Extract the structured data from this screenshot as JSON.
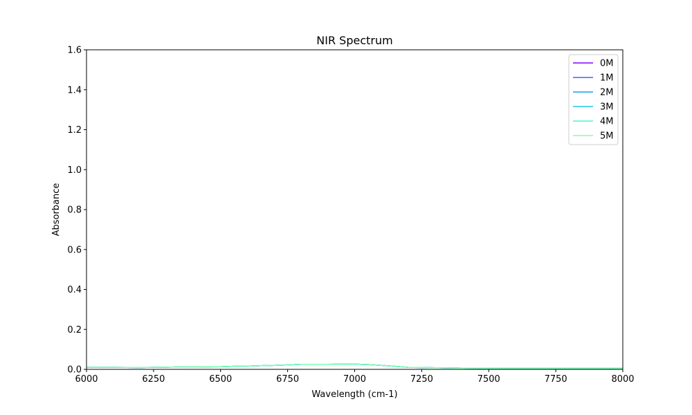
{
  "chart_data": {
    "type": "line",
    "title": "NIR Spectrum",
    "xlabel": "Wavelength (cm-1)",
    "ylabel": "Absorbance",
    "xlim": [
      6000,
      8000
    ],
    "ylim": [
      0,
      1.6
    ],
    "xticks": [
      "6000",
      "6250",
      "6500",
      "6750",
      "7000",
      "7250",
      "7500",
      "7750",
      "8000"
    ],
    "yticks": [
      "0.0",
      "0.2",
      "0.4",
      "0.6",
      "0.8",
      "1.0",
      "1.2",
      "1.4",
      "1.6"
    ],
    "grid": false,
    "legend_position": "top-right",
    "x": [
      6000,
      6100,
      6200,
      6300,
      6350,
      6400,
      6500,
      6550,
      6600,
      6650,
      6700,
      6750,
      6800,
      6900,
      7000,
      7050,
      7100,
      7150,
      7200,
      7250,
      7300,
      7400,
      7500,
      7600,
      7700,
      7800,
      7900,
      8000
    ],
    "series": [
      {
        "name": "0M",
        "color": "#8000ff",
        "values": [
          0.01,
          0.01,
          0.009,
          0.011,
          0.012,
          0.012,
          0.013,
          0.015,
          0.016,
          0.018,
          0.02,
          0.022,
          0.025,
          0.025,
          0.026,
          0.024,
          0.02,
          0.015,
          0.01,
          0.009,
          0.008,
          0.006,
          0.005,
          0.005,
          0.005,
          0.005,
          0.005,
          0.005
        ]
      },
      {
        "name": "1M",
        "color": "#4062fa",
        "values": [
          0.01,
          0.01,
          0.009,
          0.011,
          0.012,
          0.012,
          0.013,
          0.015,
          0.016,
          0.018,
          0.02,
          0.022,
          0.025,
          0.025,
          0.026,
          0.024,
          0.02,
          0.015,
          0.01,
          0.009,
          0.008,
          0.006,
          0.005,
          0.005,
          0.005,
          0.005,
          0.005,
          0.005
        ]
      },
      {
        "name": "2M",
        "color": "#0ea0f0",
        "values": [
          0.01,
          0.01,
          0.009,
          0.011,
          0.012,
          0.012,
          0.013,
          0.015,
          0.016,
          0.018,
          0.02,
          0.022,
          0.025,
          0.025,
          0.026,
          0.024,
          0.02,
          0.015,
          0.01,
          0.009,
          0.008,
          0.006,
          0.005,
          0.005,
          0.005,
          0.005,
          0.005,
          0.005
        ]
      },
      {
        "name": "3M",
        "color": "#1ac7e4",
        "values": [
          0.01,
          0.01,
          0.009,
          0.011,
          0.012,
          0.012,
          0.013,
          0.015,
          0.016,
          0.018,
          0.02,
          0.022,
          0.025,
          0.025,
          0.026,
          0.024,
          0.02,
          0.015,
          0.01,
          0.009,
          0.008,
          0.006,
          0.005,
          0.005,
          0.005,
          0.005,
          0.005,
          0.005
        ]
      },
      {
        "name": "4M",
        "color": "#4df3ce",
        "values": [
          0.01,
          0.01,
          0.009,
          0.011,
          0.012,
          0.012,
          0.013,
          0.015,
          0.016,
          0.018,
          0.02,
          0.022,
          0.025,
          0.025,
          0.026,
          0.024,
          0.02,
          0.015,
          0.01,
          0.009,
          0.008,
          0.006,
          0.005,
          0.005,
          0.005,
          0.005,
          0.005,
          0.005
        ]
      },
      {
        "name": "5M",
        "color": "#80ffb4",
        "values": [
          0.01,
          0.01,
          0.009,
          0.011,
          0.012,
          0.012,
          0.013,
          0.015,
          0.016,
          0.018,
          0.02,
          0.022,
          0.025,
          0.025,
          0.026,
          0.024,
          0.02,
          0.015,
          0.01,
          0.009,
          0.008,
          0.006,
          0.005,
          0.005,
          0.005,
          0.005,
          0.005,
          0.005
        ]
      }
    ]
  }
}
